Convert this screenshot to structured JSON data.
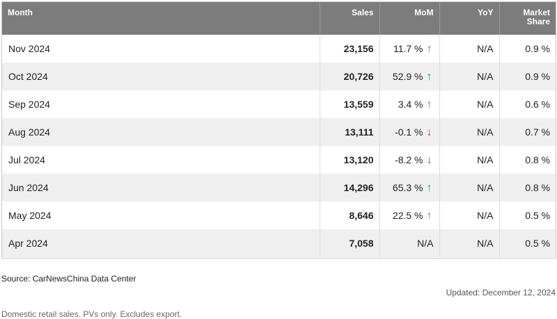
{
  "table": {
    "headers": {
      "month": "Month",
      "sales": "Sales",
      "mom": "MoM",
      "yoy": "YoY",
      "share_line1": "Market",
      "share_line2": "Share"
    },
    "rows": [
      {
        "month": "Nov 2024",
        "sales": "23,156",
        "mom": "11.7 %",
        "mom_dir": "up",
        "yoy": "N/A",
        "share": "0.9 %"
      },
      {
        "month": "Oct 2024",
        "sales": "20,726",
        "mom": "52.9 %",
        "mom_dir": "up",
        "yoy": "N/A",
        "share": "0.9 %"
      },
      {
        "month": "Sep 2024",
        "sales": "13,559",
        "mom": "3.4 %",
        "mom_dir": "up",
        "yoy": "N/A",
        "share": "0.6 %"
      },
      {
        "month": "Aug 2024",
        "sales": "13,111",
        "mom": "-0.1 %",
        "mom_dir": "down",
        "yoy": "N/A",
        "share": "0.7 %"
      },
      {
        "month": "Jul 2024",
        "sales": "13,120",
        "mom": "-8.2 %",
        "mom_dir": "down",
        "yoy": "N/A",
        "share": "0.8 %"
      },
      {
        "month": "Jun 2024",
        "sales": "14,296",
        "mom": "65.3 %",
        "mom_dir": "up",
        "yoy": "N/A",
        "share": "0.8 %"
      },
      {
        "month": "May 2024",
        "sales": "8,646",
        "mom": "22.5 %",
        "mom_dir": "up",
        "yoy": "N/A",
        "share": "0.5 %"
      },
      {
        "month": "Apr 2024",
        "sales": "7,058",
        "mom": "N/A",
        "mom_dir": "none",
        "yoy": "N/A",
        "share": "0.5 %"
      }
    ]
  },
  "icons": {
    "up": "arrow-up-icon",
    "down": "arrow-down-icon"
  },
  "colors": {
    "header_bg": "#7c7c7c",
    "up": "#2fa82f",
    "down": "#d23a2a",
    "stripe": "#efefef"
  },
  "footer": {
    "source": "Source: CarNewsChina Data Center",
    "updated": "Updated: December 12, 2024",
    "note": "Domestic retail sales. PVs only. Excludes export."
  }
}
